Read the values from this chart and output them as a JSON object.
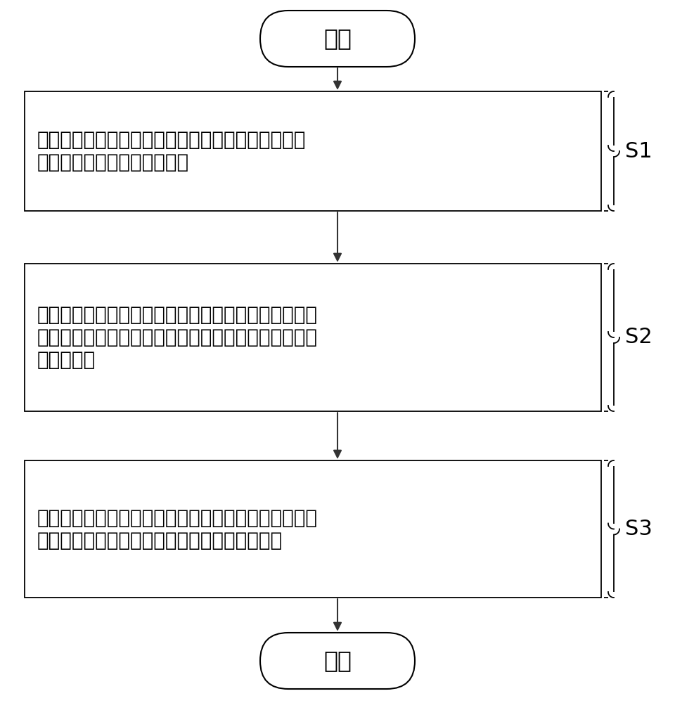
{
  "background_color": "#ffffff",
  "start_text": "开始",
  "end_text": "结束",
  "step1_line1": "根据用户输入的输入序列，确定拟在当屏呈现的所输",
  "step1_line2": "入序列所对应的多个候选词条",
  "step2_line1": "获取其中每个候选词条的可选择区域的大小，其中，所",
  "step2_line2": "述每个候选词条的可选择区域的大小基于相应候选词条",
  "step2_line3": "的权重确定",
  "step3_line1": "向所述用户呈现所述每个候选词条，以供所述用户在所",
  "step3_line2": "述每个候选词条的可选择区域选择相应候选词条",
  "label1": "S1",
  "label2": "S2",
  "label3": "S3",
  "line_color": "#333333",
  "box_edge_color": "#000000",
  "text_color": "#000000",
  "font_size": 20,
  "label_font_size": 22,
  "terminal_font_size": 24
}
